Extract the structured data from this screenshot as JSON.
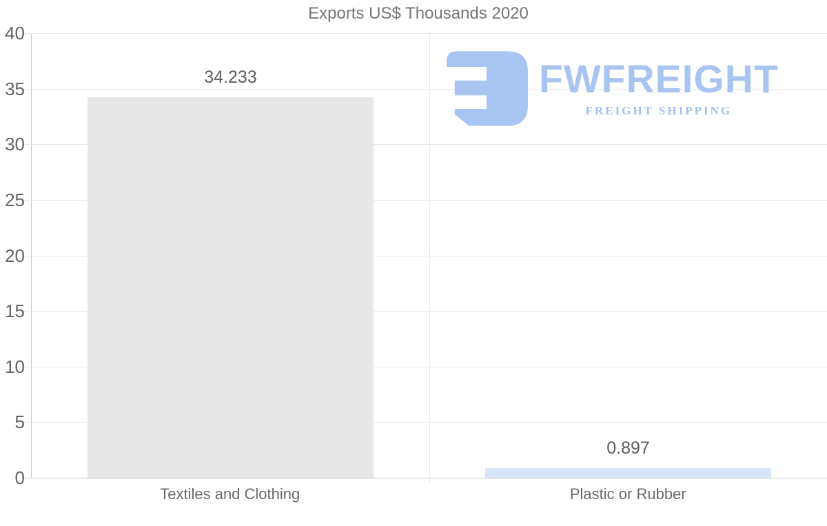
{
  "chart_data": {
    "type": "bar",
    "title": "Exports US$ Thousands 2020",
    "categories": [
      "Textiles and Clothing",
      "Plastic or Rubber"
    ],
    "values": [
      34.233,
      0.897
    ],
    "value_labels": [
      "34.233",
      "0.897"
    ],
    "bar_colors": [
      "#e7e7e7",
      "#d8e6f9"
    ],
    "xlabel": "",
    "ylabel": "",
    "ylim": [
      0,
      40
    ],
    "yticks": [
      0,
      5,
      10,
      15,
      20,
      25,
      30,
      35,
      40
    ],
    "grid": true,
    "legend": "none"
  },
  "watermark": {
    "brand": "FWFREIGHT",
    "tagline": "FREIGHT SHIPPING",
    "icon": "fwfreight-mark",
    "brand_color": "#a8c5f1",
    "tagline_color": "#9fc2ef"
  },
  "colors": {
    "background": "#ffffff",
    "grid": "#e9e9e9",
    "axis": "#c8c8c8",
    "title": "#757575",
    "tick_label": "#636363",
    "category_label": "#696969",
    "value_label": "#5e5e5e"
  }
}
